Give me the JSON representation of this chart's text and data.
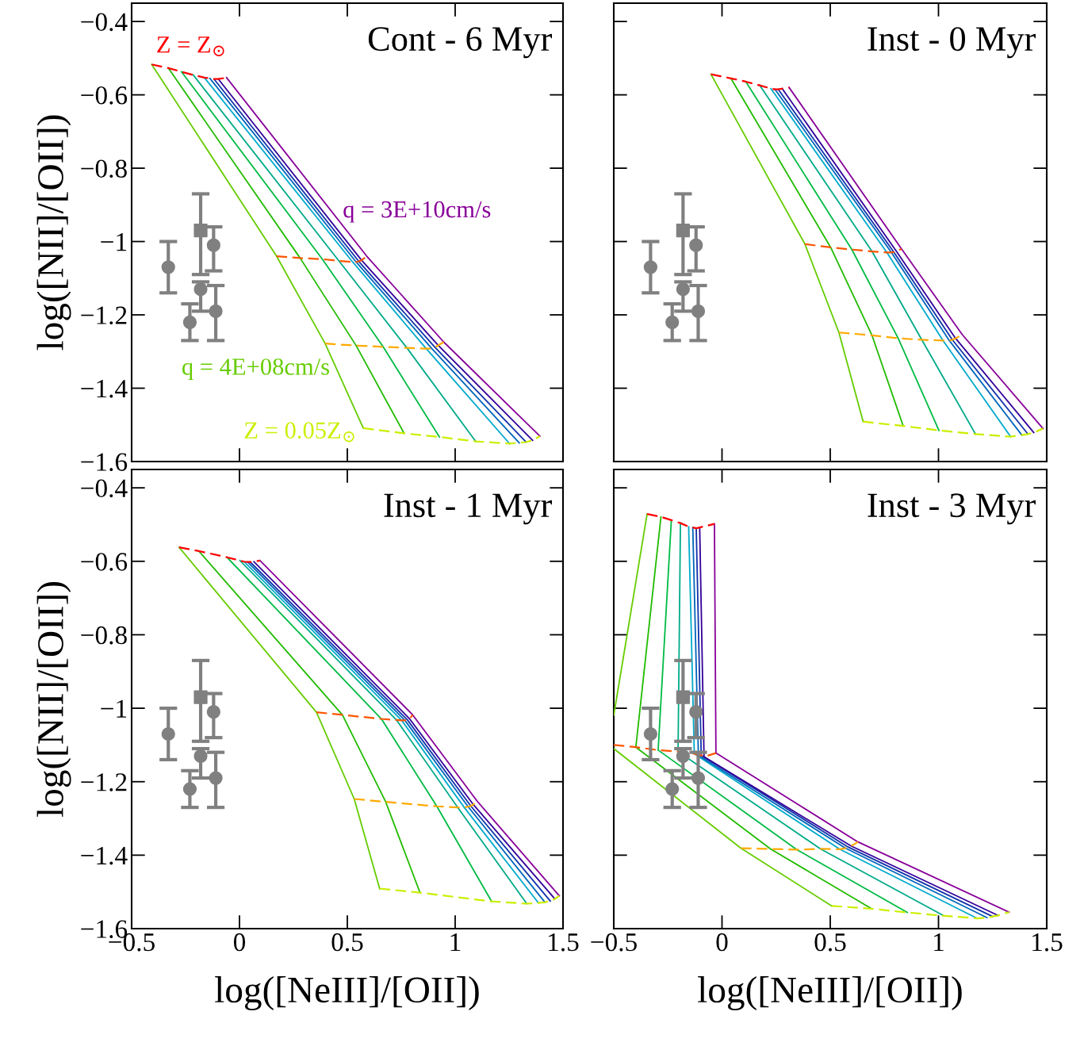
{
  "chart_data": [
    {
      "type": "line",
      "title": "Cont - 6 Myr",
      "ylabel": "log([NII]/[OII])",
      "xlim": [
        -0.5,
        1.5
      ],
      "ylim": [
        -1.6,
        -0.35
      ],
      "tick_labels": "y",
      "grid": false,
      "legend": false,
      "xticks": [
        {
          "value": -0.5,
          "label": null
        },
        {
          "value": 0,
          "label": null
        },
        {
          "value": 0.5,
          "label": null
        },
        {
          "value": 1,
          "label": null
        },
        {
          "value": 1.5,
          "label": null
        }
      ],
      "yticks": [
        {
          "value": -1.6,
          "label": "−1.6"
        },
        {
          "value": -1.4,
          "label": "−1.4"
        },
        {
          "value": -1.2,
          "label": "−1.2"
        },
        {
          "value": -1,
          "label": "−1"
        },
        {
          "value": -0.8,
          "label": "−0.8"
        },
        {
          "value": -0.6,
          "label": "−0.6"
        },
        {
          "value": -0.4,
          "label": "−0.4"
        }
      ],
      "series": [
        {
          "name": "q = 4E+08cm/s",
          "color": "#66cc00",
          "x": [
            -0.407,
            0.172,
            0.397,
            0.574
          ],
          "values": [
            -0.517,
            -1.04,
            -1.278,
            -1.509
          ]
        },
        {
          "color": "#22bb00",
          "x": [
            -0.33,
            0.281,
            0.541,
            0.763
          ],
          "values": [
            -0.527,
            -1.045,
            -1.284,
            -1.523
          ]
        },
        {
          "color": "#00bb44",
          "x": [
            -0.269,
            0.384,
            0.666,
            0.927
          ],
          "values": [
            -0.537,
            -1.048,
            -1.287,
            -1.533
          ]
        },
        {
          "color": "#00aa88",
          "x": [
            -0.214,
            0.461,
            0.776,
            1.095
          ],
          "values": [
            -0.546,
            -1.053,
            -1.29,
            -1.545
          ]
        },
        {
          "color": "#00aacc",
          "x": [
            -0.163,
            0.525,
            0.866,
            1.252
          ],
          "values": [
            -0.553,
            -1.056,
            -1.292,
            -1.551
          ]
        },
        {
          "color": "#0066bb",
          "x": [
            -0.137,
            0.541,
            0.892,
            1.297
          ],
          "values": [
            -0.555,
            -1.056,
            -1.292,
            -1.549
          ]
        },
        {
          "color": "#1133aa",
          "x": [
            -0.118,
            0.553,
            0.907,
            1.329
          ],
          "values": [
            -0.557,
            -1.054,
            -1.289,
            -1.547
          ]
        },
        {
          "color": "#330099",
          "x": [
            -0.098,
            0.566,
            0.921,
            1.359
          ],
          "values": [
            -0.557,
            -1.051,
            -1.283,
            -1.542
          ]
        },
        {
          "name": "q = 3E+10cm/s",
          "color": "#880099",
          "x": [
            -0.06,
            0.59,
            0.947,
            1.393
          ],
          "values": [
            -0.553,
            -1.04,
            -1.274,
            -1.531
          ]
        },
        {
          "name": "Z = Z$_{⊙}$",
          "color": "#ff0000",
          "line_style": "dashed",
          "x": [
            -0.407,
            -0.33,
            -0.269,
            -0.214,
            -0.163,
            -0.137,
            -0.118,
            -0.098,
            -0.06
          ],
          "values": [
            -0.517,
            -0.527,
            -0.537,
            -0.546,
            -0.553,
            -0.555,
            -0.557,
            -0.557,
            -0.553
          ]
        },
        {
          "color": "#ff5500",
          "line_style": "dashed",
          "x": [
            0.172,
            0.281,
            0.384,
            0.461,
            0.525,
            0.541,
            0.553,
            0.566,
            0.59
          ],
          "values": [
            -1.04,
            -1.045,
            -1.048,
            -1.053,
            -1.056,
            -1.056,
            -1.054,
            -1.051,
            -1.04
          ]
        },
        {
          "color": "#ffaa00",
          "line_style": "dashed",
          "x": [
            0.397,
            0.541,
            0.666,
            0.776,
            0.866,
            0.892,
            0.907,
            0.921,
            0.947
          ],
          "values": [
            -1.278,
            -1.284,
            -1.287,
            -1.29,
            -1.292,
            -1.292,
            -1.289,
            -1.283,
            -1.274
          ]
        },
        {
          "name": "Z = 0.05Z$_{⊙}$",
          "color": "#ccee00",
          "line_style": "dashed",
          "x": [
            0.574,
            0.763,
            0.927,
            1.095,
            1.252,
            1.297,
            1.329,
            1.359,
            1.393
          ],
          "values": [
            -1.509,
            -1.523,
            -1.533,
            -1.545,
            -1.551,
            -1.549,
            -1.547,
            -1.542,
            -1.531
          ]
        },
        {
          "type": "scatter",
          "marker": "circle",
          "color": "#808080",
          "x": [
            -0.33,
            -0.12,
            -0.18,
            -0.23,
            -0.11
          ],
          "values": [
            -1.07,
            -1.01,
            -1.13,
            -1.22,
            -1.19
          ],
          "errors": [
            [
              -1.14,
              -1.0
            ],
            [
              -1.08,
              -0.96
            ],
            [
              -1.19,
              -1.11
            ],
            [
              -1.27,
              -1.17
            ],
            [
              -1.27,
              -1.12
            ]
          ]
        },
        {
          "type": "scatter",
          "marker": "square",
          "color": "#808080",
          "x": [
            -0.18
          ],
          "values": [
            -0.97
          ],
          "errors": [
            [
              -1.09,
              -0.87
            ]
          ]
        }
      ]
    },
    {
      "type": "line",
      "title": "Inst - 0 Myr",
      "xlim": [
        -0.5,
        1.5
      ],
      "ylim": [
        -1.6,
        -0.35
      ],
      "tick_labels": false,
      "grid": false,
      "legend": false,
      "xticks": [
        {
          "value": -0.5,
          "label": null
        },
        {
          "value": 0,
          "label": null
        },
        {
          "value": 0.5,
          "label": null
        },
        {
          "value": 1,
          "label": null
        },
        {
          "value": 1.5,
          "label": null
        }
      ],
      "yticks": [
        {
          "value": -1.6,
          "label": null
        },
        {
          "value": -1.4,
          "label": null
        },
        {
          "value": -1.2,
          "label": null
        },
        {
          "value": -1,
          "label": null
        },
        {
          "value": -0.8,
          "label": null
        },
        {
          "value": -0.6,
          "label": null
        },
        {
          "value": -0.4,
          "label": null
        }
      ],
      "series": [
        {
          "color": "#66cc00",
          "x": [
            -0.051,
            0.383,
            0.54,
            0.652
          ],
          "values": [
            -0.544,
            -1.007,
            -1.248,
            -1.491
          ]
        },
        {
          "color": "#22bb00",
          "x": [
            0.041,
            0.502,
            0.693,
            0.837
          ],
          "values": [
            -0.555,
            -1.016,
            -1.256,
            -1.503
          ]
        },
        {
          "color": "#00bb44",
          "x": [
            0.11,
            0.6,
            0.814,
            1.002
          ],
          "values": [
            -0.564,
            -1.022,
            -1.264,
            -1.515
          ]
        },
        {
          "color": "#00aa88",
          "x": [
            0.174,
            0.693,
            0.923,
            1.171
          ],
          "values": [
            -0.574,
            -1.027,
            -1.268,
            -1.525
          ]
        },
        {
          "color": "#00aacc",
          "x": [
            0.226,
            0.762,
            1.021,
            1.333
          ],
          "values": [
            -0.583,
            -1.03,
            -1.27,
            -1.532
          ]
        },
        {
          "color": "#0066bb",
          "x": [
            0.245,
            0.783,
            1.05,
            1.385
          ],
          "values": [
            -0.585,
            -1.03,
            -1.27,
            -1.528
          ]
        },
        {
          "color": "#1133aa",
          "x": [
            0.26,
            0.794,
            1.064,
            1.413
          ],
          "values": [
            -0.585,
            -1.029,
            -1.268,
            -1.525
          ]
        },
        {
          "color": "#330099",
          "x": [
            0.278,
            0.806,
            1.079,
            1.44
          ],
          "values": [
            -0.583,
            -1.027,
            -1.264,
            -1.521
          ]
        },
        {
          "color": "#880099",
          "x": [
            0.31,
            0.829,
            1.11,
            1.483
          ],
          "values": [
            -0.58,
            -1.02,
            -1.254,
            -1.51
          ]
        },
        {
          "color": "#ff0000",
          "line_style": "dashed",
          "x": [
            -0.051,
            0.041,
            0.11,
            0.174,
            0.226,
            0.245,
            0.26,
            0.278,
            0.31
          ],
          "values": [
            -0.544,
            -0.555,
            -0.564,
            -0.574,
            -0.583,
            -0.585,
            -0.585,
            -0.583,
            -0.58
          ]
        },
        {
          "color": "#ff5500",
          "line_style": "dashed",
          "x": [
            0.383,
            0.502,
            0.6,
            0.693,
            0.762,
            0.783,
            0.794,
            0.806,
            0.829
          ],
          "values": [
            -1.007,
            -1.016,
            -1.022,
            -1.027,
            -1.03,
            -1.03,
            -1.029,
            -1.027,
            -1.02
          ]
        },
        {
          "color": "#ffaa00",
          "line_style": "dashed",
          "x": [
            0.54,
            0.693,
            0.814,
            0.923,
            1.021,
            1.05,
            1.064,
            1.079,
            1.11
          ],
          "values": [
            -1.248,
            -1.256,
            -1.264,
            -1.268,
            -1.27,
            -1.27,
            -1.268,
            -1.264,
            -1.254
          ]
        },
        {
          "color": "#ccee00",
          "line_style": "dashed",
          "x": [
            0.652,
            0.837,
            1.002,
            1.171,
            1.333,
            1.385,
            1.413,
            1.44,
            1.483
          ],
          "values": [
            -1.491,
            -1.503,
            -1.515,
            -1.525,
            -1.532,
            -1.528,
            -1.525,
            -1.521,
            -1.51
          ]
        },
        {
          "type": "scatter",
          "marker": "circle",
          "color": "#808080",
          "x": [
            -0.33,
            -0.12,
            -0.18,
            -0.23,
            -0.11
          ],
          "values": [
            -1.07,
            -1.01,
            -1.13,
            -1.22,
            -1.19
          ],
          "errors": [
            [
              -1.14,
              -1.0
            ],
            [
              -1.08,
              -0.96
            ],
            [
              -1.19,
              -1.11
            ],
            [
              -1.27,
              -1.17
            ],
            [
              -1.27,
              -1.12
            ]
          ]
        },
        {
          "type": "scatter",
          "marker": "square",
          "color": "#808080",
          "x": [
            -0.18
          ],
          "values": [
            -0.97
          ],
          "errors": [
            [
              -1.09,
              -0.87
            ]
          ]
        }
      ]
    },
    {
      "type": "line",
      "title": "Inst - 1 Myr",
      "xlabel": "log([NeIII]/[OII])",
      "ylabel": "log([NII]/[OII])",
      "xlim": [
        -0.5,
        1.5
      ],
      "ylim": [
        -1.6,
        -0.35
      ],
      "grid": false,
      "legend": false,
      "xticks": [
        {
          "value": -0.5,
          "label": "−0.5"
        },
        0,
        0.5,
        1,
        1.5
      ],
      "yticks": [
        {
          "value": -1.6,
          "label": "−1.6"
        },
        {
          "value": -1.4,
          "label": "−1.4"
        },
        {
          "value": -1.2,
          "label": "−1.2"
        },
        {
          "value": -1,
          "label": "−1"
        },
        {
          "value": -0.8,
          "label": "−0.8"
        },
        {
          "value": -0.6,
          "label": "−0.6"
        },
        {
          "value": -0.4,
          "label": "−0.4"
        }
      ],
      "series": [
        {
          "color": "#66cc00",
          "x": [
            -0.28,
            0.357,
            0.532,
            0.65
          ],
          "values": [
            -0.562,
            -1.011,
            -1.247,
            -1.491
          ]
        },
        {
          "color": "#22bb00",
          "x": [
            -0.189,
            0.477,
            0.678,
            0.837
          ],
          "values": [
            -0.572,
            -1.018,
            -1.255,
            -1.502
          ]
        },
        {
          "color": "#00bb44",
          "x": [
            -0.058,
            0.658,
            0.915,
            1.169
          ],
          "values": [
            -0.589,
            -1.029,
            -1.267,
            -1.526
          ]
        },
        {
          "color": "#00aa88",
          "x": [
            0.002,
            0.728,
            1.012,
            1.332
          ],
          "values": [
            -0.598,
            -1.032,
            -1.27,
            -1.532
          ]
        },
        {
          "color": "#00aacc",
          "x": [
            0.022,
            0.752,
            1.042,
            1.386
          ],
          "values": [
            -0.601,
            -1.033,
            -1.27,
            -1.53
          ]
        },
        {
          "color": "#0066bb",
          "x": [
            0.038,
            0.767,
            1.06,
            1.416
          ],
          "values": [
            -0.602,
            -1.033,
            -1.268,
            -1.528
          ]
        },
        {
          "color": "#1133aa",
          "x": [
            0.05,
            0.779,
            1.072,
            1.441
          ],
          "values": [
            -0.602,
            -1.032,
            -1.266,
            -1.525
          ]
        },
        {
          "color": "#330099",
          "x": [
            0.067,
            0.789,
            1.084,
            1.462
          ],
          "values": [
            -0.601,
            -1.029,
            -1.262,
            -1.519
          ]
        },
        {
          "color": "#880099",
          "x": [
            0.095,
            0.803,
            1.102,
            1.483
          ],
          "values": [
            -0.598,
            -1.018,
            -1.253,
            -1.511
          ]
        },
        {
          "color": "#ff0000",
          "line_style": "dashed",
          "x": [
            -0.28,
            -0.189,
            -0.058,
            0.002,
            0.022,
            0.038,
            0.05,
            0.067,
            0.095
          ],
          "values": [
            -0.562,
            -0.572,
            -0.589,
            -0.598,
            -0.601,
            -0.602,
            -0.602,
            -0.601,
            -0.598
          ]
        },
        {
          "color": "#ff5500",
          "line_style": "dashed",
          "x": [
            0.357,
            0.477,
            0.658,
            0.728,
            0.752,
            0.767,
            0.779,
            0.789,
            0.803
          ],
          "values": [
            -1.011,
            -1.018,
            -1.029,
            -1.032,
            -1.033,
            -1.033,
            -1.032,
            -1.029,
            -1.018
          ]
        },
        {
          "color": "#ffaa00",
          "line_style": "dashed",
          "x": [
            0.532,
            0.678,
            0.915,
            1.012,
            1.042,
            1.06,
            1.072,
            1.084,
            1.102
          ],
          "values": [
            -1.247,
            -1.255,
            -1.267,
            -1.27,
            -1.27,
            -1.268,
            -1.266,
            -1.262,
            -1.253
          ]
        },
        {
          "color": "#ccee00",
          "line_style": "dashed",
          "x": [
            0.65,
            0.837,
            1.169,
            1.332,
            1.386,
            1.416,
            1.441,
            1.462,
            1.483
          ],
          "values": [
            -1.491,
            -1.502,
            -1.526,
            -1.532,
            -1.53,
            -1.528,
            -1.525,
            -1.519,
            -1.511
          ]
        },
        {
          "type": "scatter",
          "marker": "circle",
          "color": "#808080",
          "x": [
            -0.33,
            -0.12,
            -0.18,
            -0.23,
            -0.11
          ],
          "values": [
            -1.07,
            -1.01,
            -1.13,
            -1.22,
            -1.19
          ],
          "errors": [
            [
              -1.14,
              -1.0
            ],
            [
              -1.08,
              -0.96
            ],
            [
              -1.19,
              -1.11
            ],
            [
              -1.27,
              -1.17
            ],
            [
              -1.27,
              -1.12
            ]
          ]
        },
        {
          "type": "scatter",
          "marker": "square",
          "color": "#808080",
          "x": [
            -0.18
          ],
          "values": [
            -0.97
          ],
          "errors": [
            [
              -1.09,
              -0.87
            ]
          ]
        }
      ]
    },
    {
      "type": "line",
      "title": "Inst - 3 Myr",
      "xlabel": "log([NeIII]/[OII])",
      "xlim": [
        -0.5,
        1.5
      ],
      "ylim": [
        -1.6,
        -0.35
      ],
      "tick_labels": "x",
      "grid": false,
      "legend": false,
      "xticks": [
        {
          "value": -0.5,
          "label": "−0.5"
        },
        0,
        0.5,
        1,
        1.5
      ],
      "yticks": [
        {
          "value": -1.6,
          "label": null
        },
        {
          "value": -1.4,
          "label": null
        },
        {
          "value": -1.2,
          "label": null
        },
        {
          "value": -1,
          "label": null
        },
        {
          "value": -0.8,
          "label": null
        },
        {
          "value": -0.6,
          "label": null
        },
        {
          "value": -0.4,
          "label": null
        }
      ],
      "series": [
        {
          "color": "#66cc00",
          "x": [
            -0.346,
            -0.5
          ],
          "values": [
            -0.471,
            -1.019
          ]
        },
        {
          "color": "#66cc00",
          "x": [
            -0.5,
            0.087,
            0.506
          ],
          "values": [
            -1.11,
            -1.381,
            -1.538
          ]
        },
        {
          "color": "#22bb00",
          "x": [
            -0.282,
            -0.398,
            0.224,
            0.692
          ],
          "values": [
            -0.479,
            -1.106,
            -1.383,
            -1.546
          ]
        },
        {
          "color": "#00bb44",
          "x": [
            -0.234,
            -0.295,
            0.346,
            0.856
          ],
          "values": [
            -0.488,
            -1.114,
            -1.385,
            -1.556
          ]
        },
        {
          "color": "#00aa88",
          "x": [
            -0.192,
            -0.203,
            0.455,
            1.025
          ],
          "values": [
            -0.496,
            -1.118,
            -1.383,
            -1.565
          ]
        },
        {
          "color": "#00aacc",
          "x": [
            -0.154,
            -0.128,
            0.545,
            1.179
          ],
          "values": [
            -0.506,
            -1.124,
            -1.384,
            -1.572
          ]
        },
        {
          "color": "#0066bb",
          "x": [
            -0.135,
            -0.109,
            0.57,
            1.224
          ],
          "values": [
            -0.508,
            -1.128,
            -1.381,
            -1.57
          ]
        },
        {
          "color": "#1133aa",
          "x": [
            -0.119,
            -0.096,
            0.583,
            1.25
          ],
          "values": [
            -0.51,
            -1.128,
            -1.378,
            -1.567
          ]
        },
        {
          "color": "#330099",
          "x": [
            -0.103,
            -0.083,
            0.596,
            1.275
          ],
          "values": [
            -0.508,
            -1.132,
            -1.375,
            -1.564
          ]
        },
        {
          "color": "#880099",
          "x": [
            -0.035,
            -0.028,
            0.628,
            1.326
          ],
          "values": [
            -0.498,
            -1.122,
            -1.364,
            -1.555
          ]
        },
        {
          "color": "#ff0000",
          "line_style": "dashed",
          "x": [
            -0.346,
            -0.282,
            -0.234,
            -0.192,
            -0.154,
            -0.135,
            -0.119,
            -0.103,
            -0.035
          ],
          "values": [
            -0.471,
            -0.479,
            -0.488,
            -0.496,
            -0.506,
            -0.508,
            -0.51,
            -0.508,
            -0.498
          ]
        },
        {
          "color": "#ff5500",
          "line_style": "dashed",
          "x": [
            -0.5,
            -0.398,
            -0.295,
            -0.203,
            -0.128,
            -0.109,
            -0.096,
            -0.083,
            -0.028
          ],
          "values": [
            -1.1,
            -1.106,
            -1.114,
            -1.118,
            -1.124,
            -1.128,
            -1.128,
            -1.132,
            -1.122
          ]
        },
        {
          "color": "#ffaa00",
          "line_style": "dashed",
          "x": [
            0.087,
            0.224,
            0.346,
            0.455,
            0.545,
            0.57,
            0.583,
            0.596,
            0.628
          ],
          "values": [
            -1.381,
            -1.383,
            -1.385,
            -1.383,
            -1.384,
            -1.381,
            -1.378,
            -1.375,
            -1.364
          ]
        },
        {
          "color": "#ccee00",
          "line_style": "dashed",
          "x": [
            0.506,
            0.692,
            0.856,
            1.025,
            1.179,
            1.224,
            1.25,
            1.275,
            1.326
          ],
          "values": [
            -1.538,
            -1.546,
            -1.556,
            -1.565,
            -1.572,
            -1.57,
            -1.567,
            -1.564,
            -1.555
          ]
        },
        {
          "type": "scatter",
          "marker": "circle",
          "color": "#808080",
          "x": [
            -0.33,
            -0.12,
            -0.18,
            -0.23,
            -0.11
          ],
          "values": [
            -1.07,
            -1.01,
            -1.13,
            -1.22,
            -1.19
          ],
          "errors": [
            [
              -1.14,
              -1.0
            ],
            [
              -1.08,
              -0.96
            ],
            [
              -1.19,
              -1.11
            ],
            [
              -1.27,
              -1.17
            ],
            [
              -1.27,
              -1.12
            ]
          ]
        },
        {
          "type": "scatter",
          "marker": "square",
          "color": "#808080",
          "x": [
            -0.18
          ],
          "values": [
            -0.97
          ],
          "errors": [
            [
              -1.09,
              -0.87
            ]
          ]
        }
      ]
    }
  ]
}
